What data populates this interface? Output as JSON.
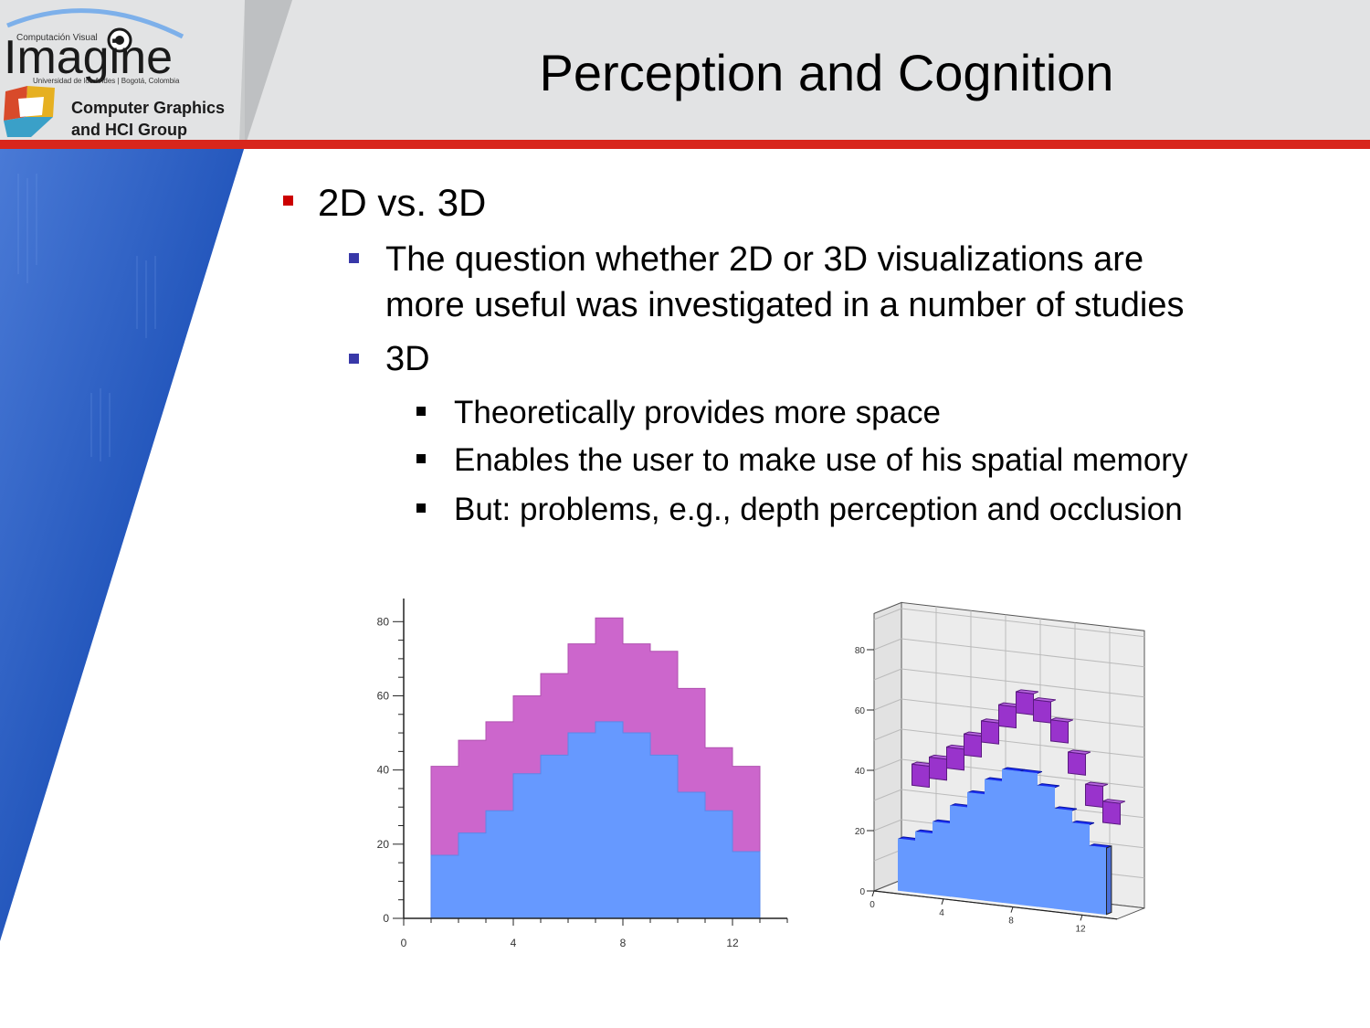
{
  "header": {
    "title": "Perception and Cognition",
    "logo": {
      "top_text": "Computación Visual",
      "wordmark": "Imagine",
      "university": "Universidad de los Andes | Bogotá, Colombia",
      "group_line1": "Computer Graphics",
      "group_line2": "and HCI Group"
    }
  },
  "bullets": {
    "l1": "2D vs. 3D",
    "l2a_line1": "The question whether 2D or 3D visualizations are",
    "l2a_line2": "more useful was investigated in a number of studies",
    "l2b": "3D",
    "l3a": "Theoretically provides more space",
    "l3b": "Enables the user to make use of his spatial memory",
    "l3c": "But: problems, e.g., depth perception and occlusion"
  },
  "colors": {
    "header_bg": "#e2e3e4",
    "red_accent": "#d8261c",
    "band_blue": "#1f4fb0",
    "series_bottom_2d": "#6699ff",
    "series_top_2d": "#cc66cc",
    "series_bottom_3d": "#1a2ff5",
    "series_top_3d": "#9933cc"
  },
  "chart_data": [
    {
      "type": "area",
      "style": "stacked-step",
      "x": [
        1,
        2,
        3,
        4,
        5,
        6,
        7,
        8,
        9,
        10,
        11,
        12
      ],
      "xticks": [
        "0",
        "4",
        "8",
        "12"
      ],
      "yticks": [
        "0",
        "20",
        "40",
        "60",
        "80"
      ],
      "xlim": [
        0,
        14
      ],
      "ylim": [
        0,
        85
      ],
      "series": [
        {
          "values": [
            17,
            23,
            29,
            39,
            44,
            50,
            53,
            50,
            44,
            34,
            29,
            18
          ]
        },
        {
          "values": [
            41,
            48,
            53,
            60,
            66,
            74,
            81,
            74,
            72,
            62,
            46,
            41
          ]
        }
      ]
    },
    {
      "type": "area",
      "style": "3d-stacked-step",
      "x": [
        1,
        2,
        3,
        4,
        5,
        6,
        7,
        8,
        9,
        10,
        11,
        12
      ],
      "xticks": [
        "0",
        "4",
        "8",
        "12"
      ],
      "yticks": [
        "0",
        "20",
        "40",
        "60",
        "80"
      ],
      "ylim": [
        0,
        85
      ],
      "series": [
        {
          "values": [
            17,
            20,
            24,
            30,
            35,
            40,
            44,
            44,
            40,
            33,
            29,
            22
          ]
        },
        {
          "values": [
            40,
            43,
            47,
            52,
            57,
            63,
            68,
            66,
            60,
            50,
            40,
            35
          ]
        }
      ]
    }
  ]
}
